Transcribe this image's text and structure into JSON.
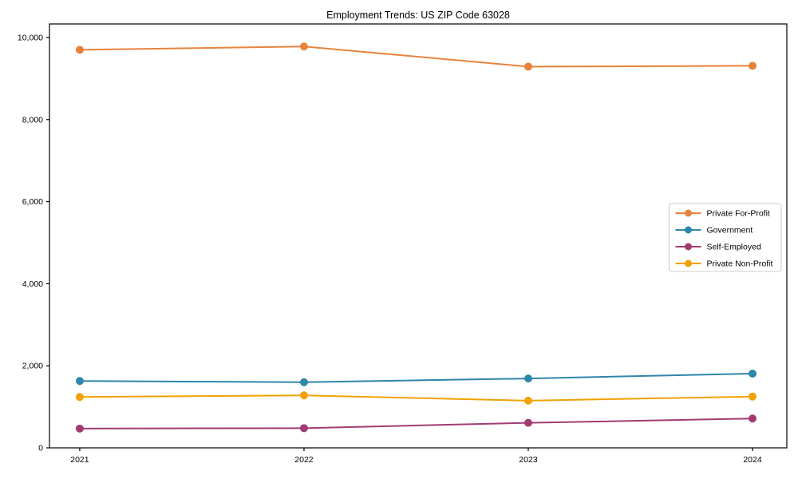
{
  "chart": {
    "title": "Employment Trends: US ZIP Code 63028",
    "background_color": "#ffffff",
    "spine_color": "#000000",
    "legend_border_color": "#cccccc",
    "legend_background_color": "#ffffff"
  },
  "chart_data": {
    "type": "line",
    "title": "Employment Trends: US ZIP Code 63028",
    "xlabel": "",
    "ylabel": "",
    "categories": [
      "2021",
      "2022",
      "2023",
      "2024"
    ],
    "series": [
      {
        "name": "Private For-Profit",
        "color": "#E8833C",
        "values": [
          9700,
          9780,
          9290,
          9310
        ]
      },
      {
        "name": "Government",
        "color": "#2E86AB",
        "values": [
          1630,
          1600,
          1690,
          1810
        ]
      },
      {
        "name": "Self-Employed",
        "color": "#A23B72",
        "values": [
          470,
          480,
          610,
          715
        ]
      },
      {
        "name": "Private Non-Profit",
        "color": "#F2A104",
        "values": [
          1240,
          1280,
          1150,
          1250
        ]
      }
    ],
    "ylim": [
      0,
      10330
    ],
    "yticks": [
      0,
      2000,
      4000,
      6000,
      8000,
      10000
    ],
    "ytick_labels": [
      "0",
      "2,000",
      "4,000",
      "6,000",
      "8,000",
      "10,000"
    ],
    "grid": false,
    "marker": "circle",
    "legend_position": "center right"
  }
}
